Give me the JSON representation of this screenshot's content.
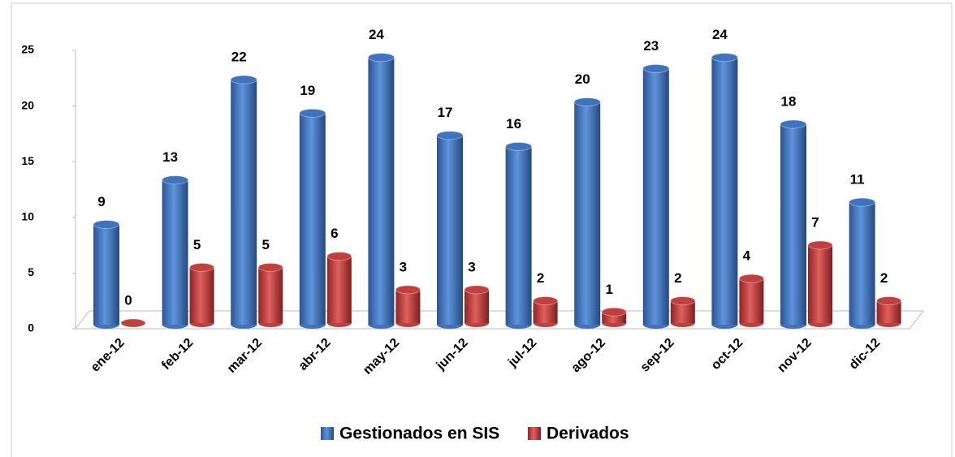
{
  "chart_data": {
    "type": "bar",
    "categories": [
      "ene-12",
      "feb-12",
      "mar-12",
      "abr-12",
      "may-12",
      "jun-12",
      "jul-12",
      "ago-12",
      "sep-12",
      "oct-12",
      "nov-12",
      "dic-12"
    ],
    "series": [
      {
        "name": "Gestionados en SIS",
        "color": "#3f73be",
        "values": [
          9,
          13,
          22,
          19,
          24,
          17,
          16,
          20,
          23,
          24,
          18,
          11
        ]
      },
      {
        "name": "Derivados",
        "color": "#c0403f",
        "values": [
          0,
          5,
          5,
          6,
          3,
          3,
          2,
          1,
          2,
          4,
          7,
          2
        ]
      }
    ],
    "ylim": [
      0,
      25
    ],
    "yticks": [
      0,
      5,
      10,
      15,
      20,
      25
    ],
    "legend": "bottom"
  }
}
